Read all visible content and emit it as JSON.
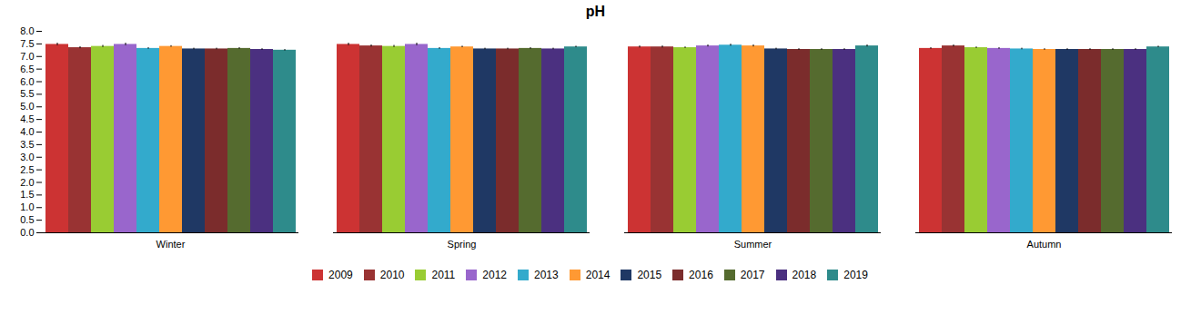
{
  "chart_data": {
    "type": "bar",
    "title": "pH",
    "categories": [
      "Winter",
      "Spring",
      "Summer",
      "Autumn"
    ],
    "series": [
      {
        "name": "2009",
        "color": "#CC3333",
        "values": [
          7.48,
          7.48,
          7.38,
          7.32
        ],
        "errors": [
          0.05,
          0.05,
          0.04,
          0.03
        ]
      },
      {
        "name": "2010",
        "color": "#993333",
        "values": [
          7.35,
          7.42,
          7.38,
          7.42
        ],
        "errors": [
          0.04,
          0.04,
          0.04,
          0.04
        ]
      },
      {
        "name": "2011",
        "color": "#99CC33",
        "values": [
          7.4,
          7.4,
          7.35,
          7.35
        ],
        "errors": [
          0.04,
          0.04,
          0.03,
          0.03
        ]
      },
      {
        "name": "2012",
        "color": "#9966CC",
        "values": [
          7.48,
          7.48,
          7.42,
          7.32
        ],
        "errors": [
          0.05,
          0.05,
          0.04,
          0.03
        ]
      },
      {
        "name": "2013",
        "color": "#33AACC",
        "values": [
          7.32,
          7.32,
          7.45,
          7.3
        ],
        "errors": [
          0.03,
          0.03,
          0.04,
          0.03
        ]
      },
      {
        "name": "2014",
        "color": "#FF9933",
        "values": [
          7.4,
          7.38,
          7.42,
          7.28
        ],
        "errors": [
          0.03,
          0.03,
          0.04,
          0.03
        ]
      },
      {
        "name": "2015",
        "color": "#1F3864",
        "values": [
          7.3,
          7.3,
          7.3,
          7.28
        ],
        "errors": [
          0.03,
          0.03,
          0.03,
          0.03
        ]
      },
      {
        "name": "2016",
        "color": "#7B2C2C",
        "values": [
          7.3,
          7.3,
          7.28,
          7.28
        ],
        "errors": [
          0.03,
          0.03,
          0.03,
          0.03
        ]
      },
      {
        "name": "2017",
        "color": "#556B2F",
        "values": [
          7.32,
          7.32,
          7.28,
          7.28
        ],
        "errors": [
          0.03,
          0.03,
          0.03,
          0.03
        ]
      },
      {
        "name": "2018",
        "color": "#4B3080",
        "values": [
          7.28,
          7.3,
          7.28,
          7.28
        ],
        "errors": [
          0.03,
          0.03,
          0.03,
          0.03
        ]
      },
      {
        "name": "2019",
        "color": "#2E8B8B",
        "values": [
          7.25,
          7.38,
          7.42,
          7.38
        ],
        "errors": [
          0.03,
          0.03,
          0.04,
          0.03
        ]
      }
    ],
    "ylim": [
      0,
      8
    ],
    "yticks": [
      {
        "value": 0,
        "label": "0.0"
      },
      0.5,
      {
        "value": 1,
        "label": "1.0"
      },
      1.5,
      {
        "value": 2,
        "label": "2.0"
      },
      2.5,
      {
        "value": 3,
        "label": "3.0"
      },
      3.5,
      {
        "value": 4,
        "label": "4.0"
      },
      4.5,
      {
        "value": 5,
        "label": "5.0"
      },
      5.5,
      {
        "value": 6,
        "label": "6.0"
      },
      6.5,
      {
        "value": 7,
        "label": "7.0"
      },
      7.5,
      {
        "value": 8,
        "label": "8.0"
      }
    ],
    "grid": false,
    "legend": "bottom"
  }
}
